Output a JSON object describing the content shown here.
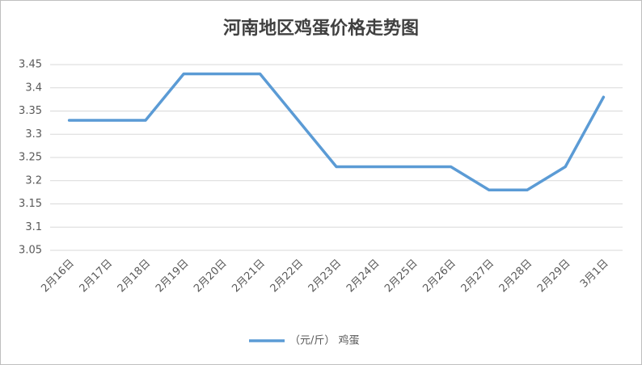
{
  "chart_data": {
    "type": "line",
    "title": "河南地区鸡蛋价格走势图",
    "categories": [
      "2月16日",
      "2月17日",
      "2月18日",
      "2月19日",
      "2月20日",
      "2月21日",
      "2月22日",
      "2月23日",
      "2月24日",
      "2月25日",
      "2月26日",
      "2月27日",
      "2月28日",
      "2月29日",
      "3月1日"
    ],
    "series": [
      {
        "name": "（元/斤） 鸡蛋",
        "color": "#5b9bd5",
        "values": [
          3.33,
          3.33,
          3.33,
          3.43,
          3.43,
          3.43,
          3.33,
          3.23,
          3.23,
          3.23,
          3.23,
          3.18,
          3.18,
          3.23,
          3.38
        ]
      }
    ],
    "ylim": [
      3.05,
      3.45
    ],
    "yticks": [
      3.05,
      3.1,
      3.15,
      3.2,
      3.25,
      3.3,
      3.35,
      3.4,
      3.45
    ],
    "grid": true
  }
}
